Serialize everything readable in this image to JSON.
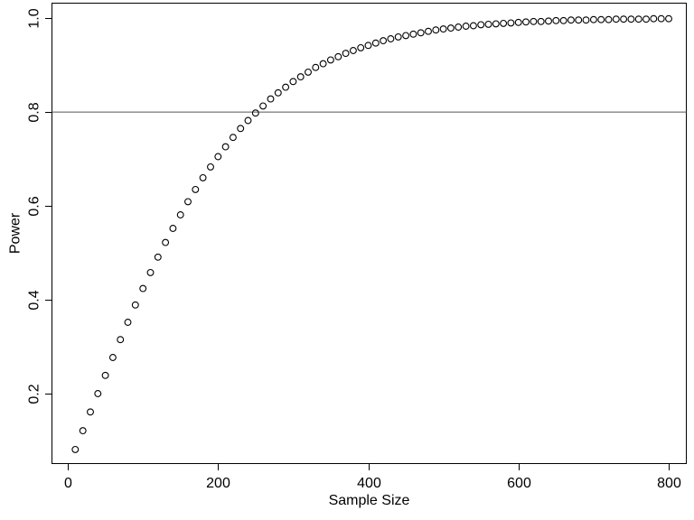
{
  "figure": {
    "background": "#ffffff"
  },
  "chart_data": {
    "type": "scatter",
    "title": "",
    "xlabel": "Sample Size",
    "ylabel": "Power",
    "marker": "open-circle",
    "grid": false,
    "legend": null,
    "x_ticks": [
      0,
      200,
      400,
      600,
      800
    ],
    "x_tick_labels": [
      "0",
      "200",
      "400",
      "600",
      "800"
    ],
    "y_ticks": [
      0.2,
      0.4,
      0.6,
      0.8,
      1.0
    ],
    "y_tick_labels": [
      "0.2",
      "0.4",
      "0.6",
      "0.8",
      "1.0"
    ],
    "xlim": [
      -21.7,
      824.1
    ],
    "ylim": [
      0.05,
      1.033
    ],
    "reference_line_y": 0.8,
    "x": [
      10,
      20,
      30,
      40,
      50,
      60,
      70,
      80,
      90,
      100,
      110,
      120,
      130,
      140,
      150,
      160,
      170,
      180,
      190,
      200,
      210,
      220,
      230,
      240,
      250,
      260,
      270,
      280,
      290,
      300,
      310,
      320,
      330,
      340,
      350,
      360,
      370,
      380,
      390,
      400,
      410,
      420,
      430,
      440,
      450,
      460,
      470,
      480,
      490,
      500,
      510,
      520,
      530,
      540,
      550,
      560,
      570,
      580,
      590,
      600,
      610,
      620,
      630,
      640,
      650,
      660,
      670,
      680,
      690,
      700,
      710,
      720,
      730,
      740,
      750,
      760,
      770,
      780,
      790,
      800
    ],
    "y": [
      0.081,
      0.121,
      0.161,
      0.2,
      0.239,
      0.277,
      0.315,
      0.352,
      0.389,
      0.424,
      0.458,
      0.491,
      0.522,
      0.552,
      0.581,
      0.609,
      0.635,
      0.66,
      0.683,
      0.705,
      0.726,
      0.746,
      0.765,
      0.782,
      0.798,
      0.813,
      0.828,
      0.841,
      0.853,
      0.865,
      0.875,
      0.885,
      0.895,
      0.903,
      0.911,
      0.918,
      0.925,
      0.931,
      0.937,
      0.942,
      0.947,
      0.952,
      0.956,
      0.96,
      0.963,
      0.966,
      0.969,
      0.972,
      0.975,
      0.977,
      0.979,
      0.981,
      0.983,
      0.984,
      0.986,
      0.987,
      0.988,
      0.989,
      0.99,
      0.991,
      0.992,
      0.993,
      0.993,
      0.994,
      0.995,
      0.995,
      0.996,
      0.996,
      0.996,
      0.997,
      0.997,
      0.997,
      0.998,
      0.998,
      0.998,
      0.998,
      0.998,
      0.999,
      0.999,
      0.999
    ],
    "colors": {
      "points": "#000000",
      "axis": "#000000",
      "text": "#000000",
      "reference_line": "#555555"
    }
  }
}
